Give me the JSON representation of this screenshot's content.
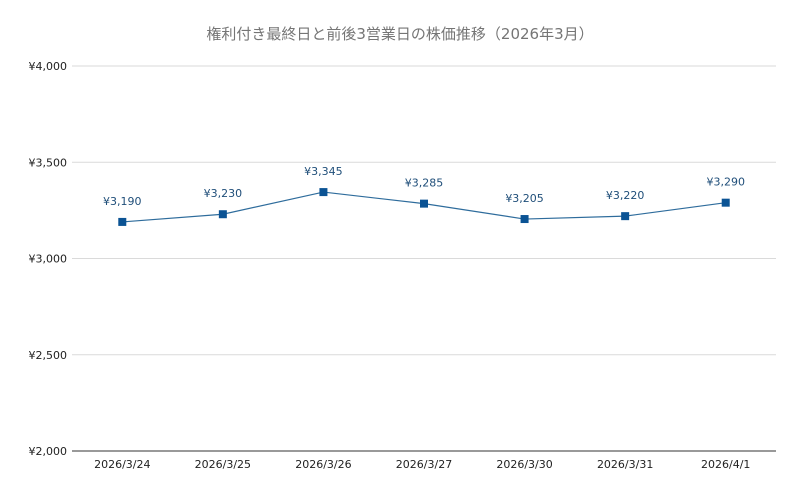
{
  "chart_data": {
    "type": "line",
    "title": "権利付き最終日と前後3営業日の株価推移（2026年3月）",
    "xlabel": "",
    "ylabel": "",
    "categories": [
      "2026/3/24",
      "2026/3/25",
      "2026/3/26",
      "2026/3/27",
      "2026/3/30",
      "2026/3/31",
      "2026/4/1"
    ],
    "series": [
      {
        "values": [
          3190,
          3230,
          3345,
          3285,
          3205,
          3220,
          3290
        ],
        "data_labels": [
          "¥3,190",
          "¥3,230",
          "¥3,345",
          "¥3,285",
          "¥3,205",
          "¥3,220",
          "¥3,290"
        ],
        "color": "#2e6c9c",
        "marker_color": "#0b5394",
        "marker": "square"
      }
    ],
    "ylim": [
      2000,
      4000
    ],
    "yticks": [
      2000,
      2500,
      3000,
      3500,
      4000
    ],
    "ytick_labels": [
      "¥2,000",
      "¥2,500",
      "¥3,000",
      "¥3,500",
      "¥4,000"
    ],
    "grid": true,
    "legend": "none"
  }
}
